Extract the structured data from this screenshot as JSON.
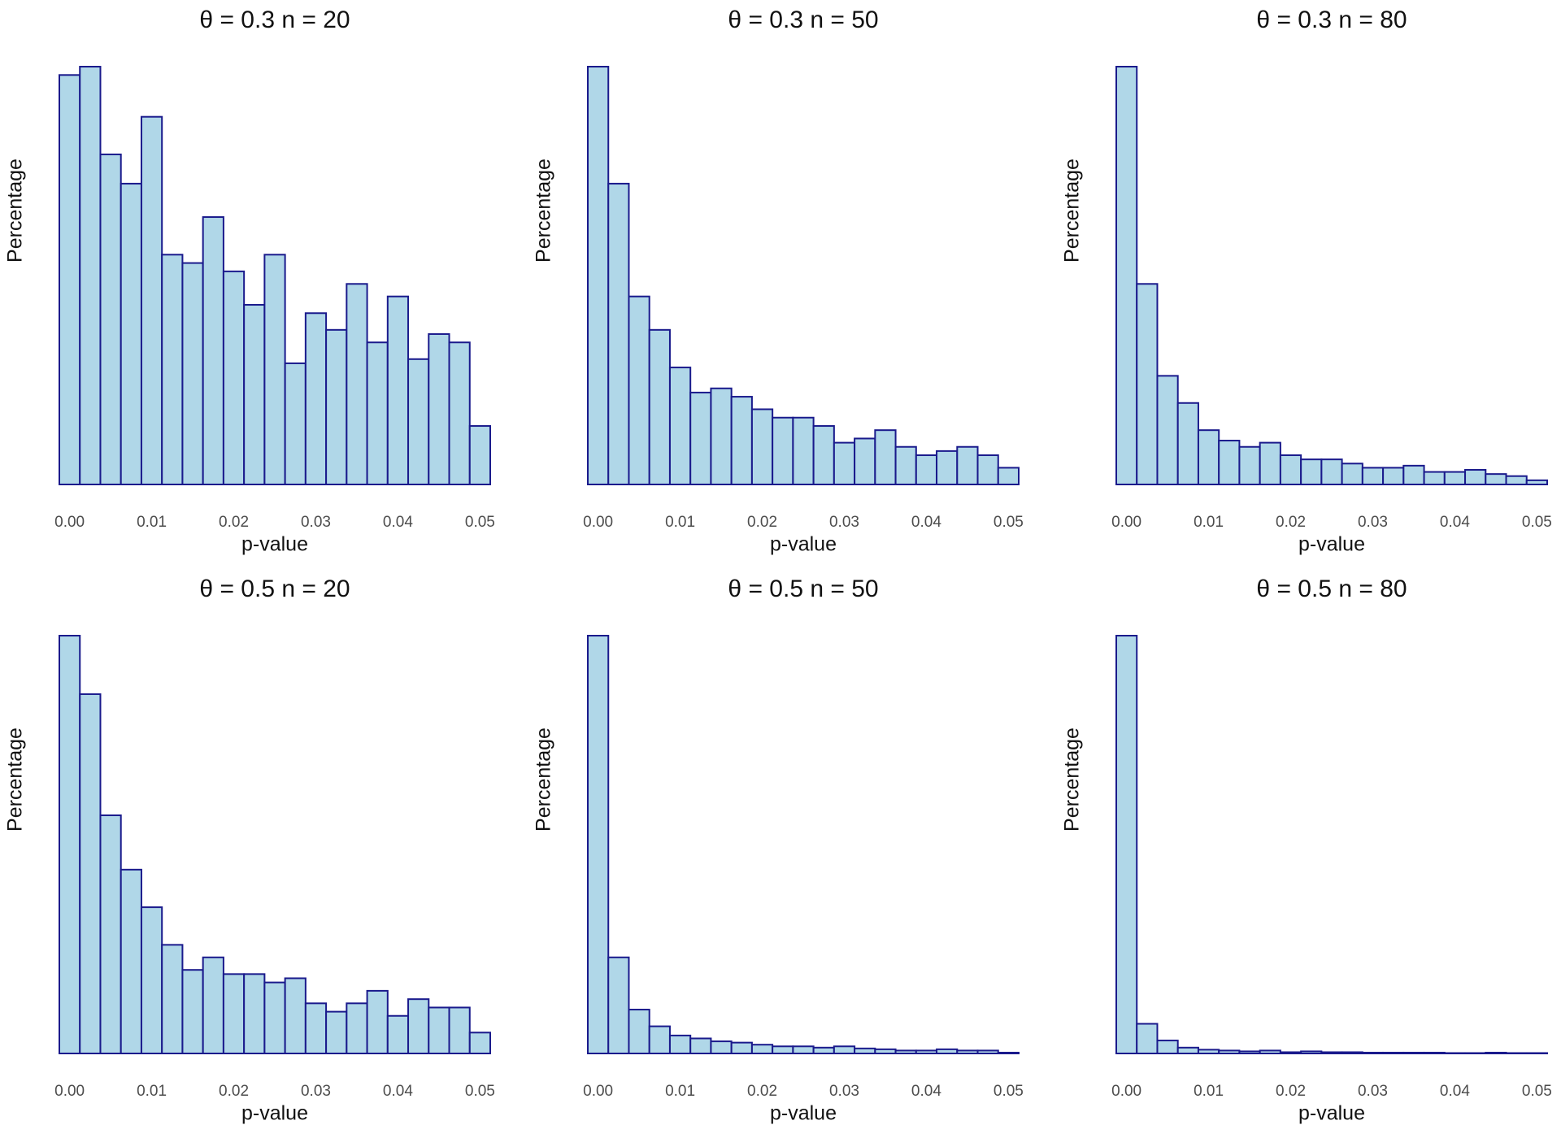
{
  "chart_data": [
    {
      "type": "histogram",
      "title": "θ = 0.3 n = 20",
      "xlabel": "p-value",
      "ylabel": "Percentage",
      "bins": [
        -0.00125,
        0.00125,
        0.00375,
        0.00625,
        0.00875,
        0.01125,
        0.01375,
        0.01625,
        0.01875,
        0.02125,
        0.02375,
        0.02625,
        0.02875,
        0.03125,
        0.03375,
        0.03625,
        0.03875,
        0.04125,
        0.04375,
        0.04625,
        0.04875,
        0.05125
      ],
      "values": [
        98,
        100,
        79,
        72,
        88,
        55,
        53,
        64,
        51,
        43,
        55,
        29,
        41,
        37,
        48,
        34,
        45,
        30,
        36,
        34,
        14
      ],
      "color": "#b0d7e8",
      "edgecolor": "#1a1a8c",
      "xlim": [
        -0.00125,
        0.05125
      ],
      "xticks": [
        {
          "value": 0,
          "label": "0.00"
        },
        0.01,
        0.02,
        0.03,
        0.04,
        0.05
      ],
      "ylim": [
        0,
        100
      ]
    },
    {
      "type": "histogram",
      "title": "θ = 0.3 n = 50",
      "xlabel": "p-value",
      "ylabel": "Percentage",
      "bins": [
        -0.00125,
        0.00125,
        0.00375,
        0.00625,
        0.00875,
        0.01125,
        0.01375,
        0.01625,
        0.01875,
        0.02125,
        0.02375,
        0.02625,
        0.02875,
        0.03125,
        0.03375,
        0.03625,
        0.03875,
        0.04125,
        0.04375,
        0.04625,
        0.04875,
        0.05125
      ],
      "values": [
        100,
        72,
        45,
        37,
        28,
        22,
        23,
        21,
        18,
        16,
        16,
        14,
        10,
        11,
        13,
        9,
        7,
        8,
        9,
        7,
        4
      ],
      "color": "#b0d7e8",
      "edgecolor": "#1a1a8c",
      "xlim": [
        -0.00125,
        0.05125
      ],
      "xticks": [
        {
          "value": 0,
          "label": "0.00"
        },
        0.01,
        0.02,
        0.03,
        0.04,
        0.05
      ],
      "ylim": [
        0,
        100
      ]
    },
    {
      "type": "histogram",
      "title": "θ = 0.3 n = 80",
      "xlabel": "p-value",
      "ylabel": "Percentage",
      "bins": [
        -0.00125,
        0.00125,
        0.00375,
        0.00625,
        0.00875,
        0.01125,
        0.01375,
        0.01625,
        0.01875,
        0.02125,
        0.02375,
        0.02625,
        0.02875,
        0.03125,
        0.03375,
        0.03625,
        0.03875,
        0.04125,
        0.04375,
        0.04625,
        0.04875,
        0.05125
      ],
      "values": [
        100,
        48,
        26,
        19.5,
        13,
        10.5,
        9,
        10,
        7,
        6,
        6,
        5,
        4,
        4,
        4.5,
        3,
        3,
        3.5,
        2.5,
        2,
        1
      ],
      "color": "#b0d7e8",
      "edgecolor": "#1a1a8c",
      "xlim": [
        -0.00125,
        0.05125
      ],
      "xticks": [
        {
          "value": 0,
          "label": "0.00"
        },
        0.01,
        0.02,
        0.03,
        0.04,
        0.05
      ],
      "ylim": [
        0,
        100
      ]
    },
    {
      "type": "histogram",
      "title": "θ = 0.5 n = 20",
      "xlabel": "p-value",
      "ylabel": "Percentage",
      "bins": [
        -0.00125,
        0.00125,
        0.00375,
        0.00625,
        0.00875,
        0.01125,
        0.01375,
        0.01625,
        0.01875,
        0.02125,
        0.02375,
        0.02625,
        0.02875,
        0.03125,
        0.03375,
        0.03625,
        0.03875,
        0.04125,
        0.04375,
        0.04625,
        0.04875,
        0.05125
      ],
      "values": [
        100,
        86,
        57,
        44,
        35,
        26,
        20,
        23,
        19,
        19,
        17,
        18,
        12,
        10,
        12,
        15,
        9,
        13,
        11,
        11,
        5
      ],
      "color": "#b0d7e8",
      "edgecolor": "#1a1a8c",
      "xlim": [
        -0.00125,
        0.05125
      ],
      "xticks": [
        {
          "value": 0,
          "label": "0.00"
        },
        0.01,
        0.02,
        0.03,
        0.04,
        0.05
      ],
      "ylim": [
        0,
        100
      ]
    },
    {
      "type": "histogram",
      "title": "θ = 0.5 n = 50",
      "xlabel": "p-value",
      "ylabel": "Percentage",
      "bins": [
        -0.00125,
        0.00125,
        0.00375,
        0.00625,
        0.00875,
        0.01125,
        0.01375,
        0.01625,
        0.01875,
        0.02125,
        0.02375,
        0.02625,
        0.02875,
        0.03125,
        0.03375,
        0.03625,
        0.03875,
        0.04125,
        0.04375,
        0.04625,
        0.04875,
        0.05125
      ],
      "values": [
        100,
        23,
        10.5,
        6.5,
        4.3,
        3.6,
        2.9,
        2.6,
        2.1,
        1.7,
        1.7,
        1.4,
        1.7,
        1.2,
        1,
        0.7,
        0.7,
        1,
        0.7,
        0.7,
        0.2
      ],
      "color": "#b0d7e8",
      "edgecolor": "#1a1a8c",
      "xlim": [
        -0.00125,
        0.05125
      ],
      "xticks": [
        {
          "value": 0,
          "label": "0.00"
        },
        0.01,
        0.02,
        0.03,
        0.04,
        0.05
      ],
      "ylim": [
        0,
        100
      ]
    },
    {
      "type": "histogram",
      "title": "θ = 0.5 n = 80",
      "xlabel": "p-value",
      "ylabel": "Percentage",
      "bins": [
        -0.00125,
        0.00125,
        0.00375,
        0.00625,
        0.00875,
        0.01125,
        0.01375,
        0.01625,
        0.01875,
        0.02125,
        0.02375,
        0.02625,
        0.02875,
        0.03125,
        0.03375,
        0.03625,
        0.03875,
        0.04125,
        0.04375,
        0.04625,
        0.04875,
        0.05125
      ],
      "values": [
        100,
        7.1,
        3.1,
        1.4,
        0.9,
        0.7,
        0.5,
        0.7,
        0.3,
        0.5,
        0.3,
        0.3,
        0.2,
        0.2,
        0.2,
        0.2,
        0.1,
        0.1,
        0.2,
        0.1,
        0.1
      ],
      "color": "#b0d7e8",
      "edgecolor": "#1a1a8c",
      "xlim": [
        -0.00125,
        0.05125
      ],
      "xticks": [
        {
          "value": 0,
          "label": "0.00"
        },
        0.01,
        0.02,
        0.03,
        0.04,
        0.05
      ],
      "ylim": [
        0,
        100
      ]
    }
  ]
}
